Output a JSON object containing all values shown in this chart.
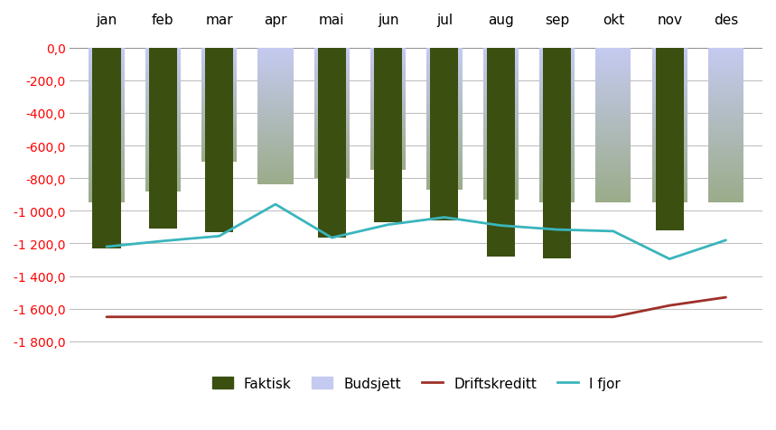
{
  "months": [
    "jan",
    "feb",
    "mar",
    "apr",
    "mai",
    "jun",
    "jul",
    "aug",
    "sep",
    "okt",
    "nov",
    "des"
  ],
  "faktisk": [
    -1230,
    -1110,
    -1130,
    null,
    -1165,
    -1070,
    -1060,
    -1280,
    -1290,
    null,
    -1120,
    null
  ],
  "budsjett": [
    -950,
    -880,
    -700,
    -840,
    -800,
    -750,
    -870,
    -930,
    -950,
    -950,
    -950,
    -950
  ],
  "driftskreditt": [
    -1650,
    -1650,
    -1650,
    -1650,
    -1650,
    -1650,
    -1650,
    -1650,
    -1650,
    -1650,
    -1580,
    -1530
  ],
  "i_fjor": [
    -1220,
    -1185,
    -1155,
    -960,
    -1165,
    -1085,
    -1040,
    -1090,
    -1115,
    -1125,
    -1295,
    -1180
  ],
  "faktisk_color": "#3a4f10",
  "budsjett_color_top": "#c5caf0",
  "budsjett_color_bottom": "#9aab88",
  "driftskreditt_color": "#9e3028",
  "i_fjor_color": "#3ab5bd",
  "ylim": [
    -1900,
    100
  ],
  "yticks": [
    0,
    -200,
    -400,
    -600,
    -800,
    -1000,
    -1200,
    -1400,
    -1600,
    -1800
  ],
  "ytick_labels": [
    "0,0",
    "-200,0",
    "-400,0",
    "-600,0",
    "-800,0",
    "-1 000,0",
    "-1 200,0",
    "-1 400,0",
    "-1 600,0",
    "-1 800,0"
  ],
  "legend_labels": [
    "Faktisk",
    "Budsjett",
    "Driftskreditt",
    "I fjor"
  ],
  "bar_width": 0.55,
  "bg_color": "#ffffff",
  "grid_color": "#c0c0c0"
}
